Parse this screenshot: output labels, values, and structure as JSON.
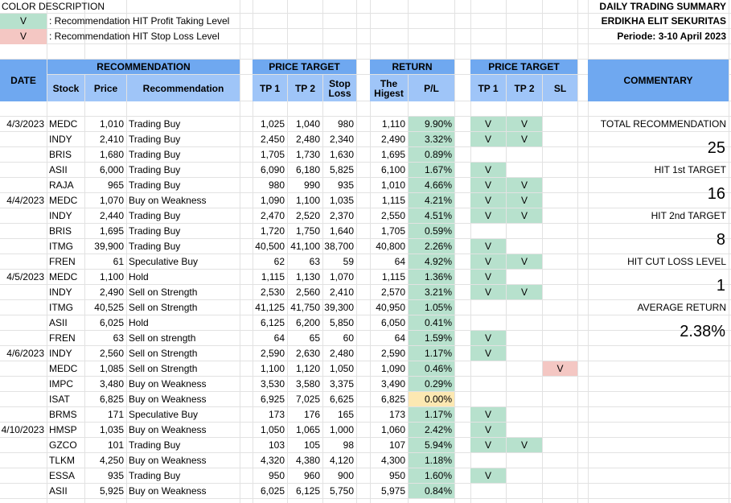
{
  "legend": {
    "title": "COLOR DESCRIPTION",
    "items": [
      {
        "mark": "V",
        "text": ": Recommendation HIT Profit Taking Level",
        "color": "#b7e1cd"
      },
      {
        "mark": "V",
        "text": ": Recommendation HIT Stop Loss Level",
        "color": "#f4c7c3"
      }
    ]
  },
  "header": {
    "title": "DAILY TRADING SUMMARY",
    "company": "ERDIKHA ELIT SEKURITAS",
    "period": "Periode: 3-10 April 2023"
  },
  "columns": {
    "date": "DATE",
    "recommendation_group": "RECOMMENDATION",
    "stock": "Stock",
    "price": "Price",
    "recommendation": "Recommendation",
    "price_target_group": "PRICE TARGET",
    "tp1": "TP 1",
    "tp2": "TP 2",
    "stop_loss": "Stop Loss",
    "return_group": "RETURN",
    "highest": "The Higest",
    "pl": "P/L",
    "hit_group": "PRICE TARGET",
    "hit_tp1": "TP 1",
    "hit_tp2": "TP 2",
    "hit_sl": "SL",
    "commentary": "COMMENTARY"
  },
  "rows": [
    {
      "date": "4/3/2023",
      "stock": "MEDC",
      "price": "1,010",
      "rec": "Trading Buy",
      "tp1": "1,025",
      "tp2": "1,040",
      "sl": "980",
      "high": "1,110",
      "pl": "9.90%",
      "plcolor": "green",
      "h1": "V",
      "h2": "V",
      "hs": ""
    },
    {
      "date": "",
      "stock": "INDY",
      "price": "2,410",
      "rec": "Trading Buy",
      "tp1": "2,450",
      "tp2": "2,480",
      "sl": "2,340",
      "high": "2,490",
      "pl": "3.32%",
      "plcolor": "green",
      "h1": "V",
      "h2": "V",
      "hs": ""
    },
    {
      "date": "",
      "stock": "BRIS",
      "price": "1,680",
      "rec": "Trading Buy",
      "tp1": "1,705",
      "tp2": "1,730",
      "sl": "1,630",
      "high": "1,695",
      "pl": "0.89%",
      "plcolor": "green",
      "h1": "",
      "h2": "",
      "hs": ""
    },
    {
      "date": "",
      "stock": "ASII",
      "price": "6,000",
      "rec": "Trading Buy",
      "tp1": "6,090",
      "tp2": "6,180",
      "sl": "5,825",
      "high": "6,100",
      "pl": "1.67%",
      "plcolor": "green",
      "h1": "V",
      "h2": "",
      "hs": ""
    },
    {
      "date": "",
      "stock": "RAJA",
      "price": "965",
      "rec": "Trading Buy",
      "tp1": "980",
      "tp2": "990",
      "sl": "935",
      "high": "1,010",
      "pl": "4.66%",
      "plcolor": "green",
      "h1": "V",
      "h2": "V",
      "hs": ""
    },
    {
      "date": "4/4/2023",
      "stock": "MEDC",
      "price": "1,070",
      "rec": "Buy on Weakness",
      "tp1": "1,090",
      "tp2": "1,100",
      "sl": "1,035",
      "high": "1,115",
      "pl": "4.21%",
      "plcolor": "green",
      "h1": "V",
      "h2": "V",
      "hs": ""
    },
    {
      "date": "",
      "stock": "INDY",
      "price": "2,440",
      "rec": "Trading Buy",
      "tp1": "2,470",
      "tp2": "2,520",
      "sl": "2,370",
      "high": "2,550",
      "pl": "4.51%",
      "plcolor": "green",
      "h1": "V",
      "h2": "V",
      "hs": ""
    },
    {
      "date": "",
      "stock": "BRIS",
      "price": "1,695",
      "rec": "Trading Buy",
      "tp1": "1,720",
      "tp2": "1,750",
      "sl": "1,640",
      "high": "1,705",
      "pl": "0.59%",
      "plcolor": "green",
      "h1": "",
      "h2": "",
      "hs": ""
    },
    {
      "date": "",
      "stock": "ITMG",
      "price": "39,900",
      "rec": "Trading Buy",
      "tp1": "40,500",
      "tp2": "41,100",
      "sl": "38,700",
      "high": "40,800",
      "pl": "2.26%",
      "plcolor": "green",
      "h1": "V",
      "h2": "",
      "hs": ""
    },
    {
      "date": "",
      "stock": "FREN",
      "price": "61",
      "rec": "Speculative Buy",
      "tp1": "62",
      "tp2": "63",
      "sl": "59",
      "high": "64",
      "pl": "4.92%",
      "plcolor": "green",
      "h1": "V",
      "h2": "V",
      "hs": ""
    },
    {
      "date": "4/5/2023",
      "stock": "MEDC",
      "price": "1,100",
      "rec": "Hold",
      "tp1": "1,115",
      "tp2": "1,130",
      "sl": "1,070",
      "high": "1,115",
      "pl": "1.36%",
      "plcolor": "green",
      "h1": "V",
      "h2": "",
      "hs": ""
    },
    {
      "date": "",
      "stock": "INDY",
      "price": "2,490",
      "rec": "Sell on Strength",
      "tp1": "2,530",
      "tp2": "2,560",
      "sl": "2,410",
      "high": "2,570",
      "pl": "3.21%",
      "plcolor": "green",
      "h1": "V",
      "h2": "V",
      "hs": ""
    },
    {
      "date": "",
      "stock": "ITMG",
      "price": "40,525",
      "rec": "Sell on Strength",
      "tp1": "41,125",
      "tp2": "41,750",
      "sl": "39,300",
      "high": "40,950",
      "pl": "1.05%",
      "plcolor": "green",
      "h1": "",
      "h2": "",
      "hs": ""
    },
    {
      "date": "",
      "stock": "ASII",
      "price": "6,025",
      "rec": "Hold",
      "tp1": "6,125",
      "tp2": "6,200",
      "sl": "5,850",
      "high": "6,050",
      "pl": "0.41%",
      "plcolor": "green",
      "h1": "",
      "h2": "",
      "hs": ""
    },
    {
      "date": "",
      "stock": "FREN",
      "price": "63",
      "rec": "Sell on strength",
      "tp1": "64",
      "tp2": "65",
      "sl": "60",
      "high": "64",
      "pl": "1.59%",
      "plcolor": "green",
      "h1": "V",
      "h2": "",
      "hs": ""
    },
    {
      "date": "4/6/2023",
      "stock": "INDY",
      "price": "2,560",
      "rec": "Sell on Strength",
      "tp1": "2,590",
      "tp2": "2,630",
      "sl": "2,480",
      "high": "2,590",
      "pl": "1.17%",
      "plcolor": "green",
      "h1": "V",
      "h2": "",
      "hs": ""
    },
    {
      "date": "",
      "stock": "MEDC",
      "price": "1,085",
      "rec": "Sell on Strength",
      "tp1": "1,100",
      "tp2": "1,120",
      "sl": "1,050",
      "high": "1,090",
      "pl": "0.46%",
      "plcolor": "green",
      "h1": "",
      "h2": "",
      "hs": "V"
    },
    {
      "date": "",
      "stock": "IMPC",
      "price": "3,480",
      "rec": "Buy on Weakness",
      "tp1": "3,530",
      "tp2": "3,580",
      "sl": "3,375",
      "high": "3,490",
      "pl": "0.29%",
      "plcolor": "green",
      "h1": "",
      "h2": "",
      "hs": ""
    },
    {
      "date": "",
      "stock": "ISAT",
      "price": "6,825",
      "rec": "Buy on Weakness",
      "tp1": "6,925",
      "tp2": "7,025",
      "sl": "6,625",
      "high": "6,825",
      "pl": "0.00%",
      "plcolor": "yellow",
      "h1": "",
      "h2": "",
      "hs": ""
    },
    {
      "date": "",
      "stock": "BRMS",
      "price": "171",
      "rec": "Speculative Buy",
      "tp1": "173",
      "tp2": "176",
      "sl": "165",
      "high": "173",
      "pl": "1.17%",
      "plcolor": "green",
      "h1": "V",
      "h2": "",
      "hs": ""
    },
    {
      "date": "4/10/2023",
      "stock": "HMSP",
      "price": "1,035",
      "rec": "Buy on Weakness",
      "tp1": "1,050",
      "tp2": "1,065",
      "sl": "1,000",
      "high": "1,060",
      "pl": "2.42%",
      "plcolor": "green",
      "h1": "V",
      "h2": "",
      "hs": ""
    },
    {
      "date": "",
      "stock": "GZCO",
      "price": "101",
      "rec": "Trading Buy",
      "tp1": "103",
      "tp2": "105",
      "sl": "98",
      "high": "107",
      "pl": "5.94%",
      "plcolor": "green",
      "h1": "V",
      "h2": "V",
      "hs": ""
    },
    {
      "date": "",
      "stock": "TLKM",
      "price": "4,250",
      "rec": "Buy on Weakness",
      "tp1": "4,320",
      "tp2": "4,380",
      "sl": "4,120",
      "high": "4,300",
      "pl": "1.18%",
      "plcolor": "green",
      "h1": "",
      "h2": "",
      "hs": ""
    },
    {
      "date": "",
      "stock": "ESSA",
      "price": "935",
      "rec": "Trading Buy",
      "tp1": "950",
      "tp2": "960",
      "sl": "900",
      "high": "950",
      "pl": "1.60%",
      "plcolor": "green",
      "h1": "V",
      "h2": "",
      "hs": ""
    },
    {
      "date": "",
      "stock": "ASII",
      "price": "5,925",
      "rec": "Buy on Weakness",
      "tp1": "6,025",
      "tp2": "6,125",
      "sl": "5,750",
      "high": "5,975",
      "pl": "0.84%",
      "plcolor": "green",
      "h1": "",
      "h2": "",
      "hs": ""
    }
  ],
  "commentary": [
    {
      "label": "TOTAL RECOMMENDATION",
      "value": "25"
    },
    {
      "label": "HIT 1st TARGET",
      "value": "16"
    },
    {
      "label": "HIT 2nd TARGET",
      "value": "8"
    },
    {
      "label": "HIT CUT LOSS LEVEL",
      "value": "1"
    },
    {
      "label": "AVERAGE RETURN",
      "value": "2.38%"
    }
  ]
}
